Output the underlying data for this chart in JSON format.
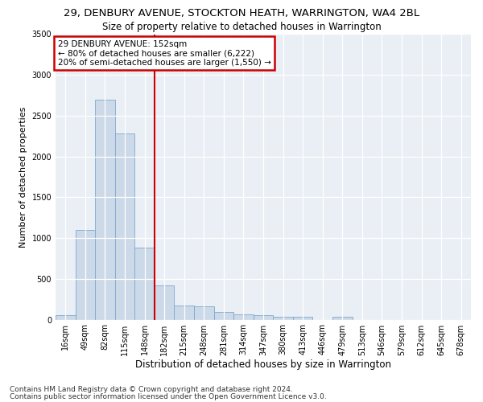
{
  "title": "29, DENBURY AVENUE, STOCKTON HEATH, WARRINGTON, WA4 2BL",
  "subtitle": "Size of property relative to detached houses in Warrington",
  "xlabel": "Distribution of detached houses by size in Warrington",
  "ylabel": "Number of detached properties",
  "categories": [
    "16sqm",
    "49sqm",
    "82sqm",
    "115sqm",
    "148sqm",
    "182sqm",
    "215sqm",
    "248sqm",
    "281sqm",
    "314sqm",
    "347sqm",
    "380sqm",
    "413sqm",
    "446sqm",
    "479sqm",
    "513sqm",
    "546sqm",
    "579sqm",
    "612sqm",
    "645sqm",
    "678sqm"
  ],
  "values": [
    50,
    1100,
    2700,
    2280,
    880,
    415,
    170,
    165,
    90,
    60,
    55,
    30,
    30,
    0,
    30,
    0,
    0,
    0,
    0,
    0,
    0
  ],
  "bar_color": "#ccd9e8",
  "bar_edgecolor": "#7fa8cc",
  "vline_color": "#cc0000",
  "vline_x": 4.5,
  "ylim": [
    0,
    3500
  ],
  "yticks": [
    0,
    500,
    1000,
    1500,
    2000,
    2500,
    3000,
    3500
  ],
  "annotation_text": "29 DENBURY AVENUE: 152sqm\n← 80% of detached houses are smaller (6,222)\n20% of semi-detached houses are larger (1,550) →",
  "annotation_box_edgecolor": "#cc0000",
  "annotation_box_facecolor": "#ffffff",
  "footer1": "Contains HM Land Registry data © Crown copyright and database right 2024.",
  "footer2": "Contains public sector information licensed under the Open Government Licence v3.0.",
  "plot_bg_color": "#eaeff5",
  "title_fontsize": 9.5,
  "subtitle_fontsize": 8.5,
  "tick_fontsize": 7,
  "ylabel_fontsize": 8,
  "xlabel_fontsize": 8.5,
  "annotation_fontsize": 7.5,
  "footer_fontsize": 6.5
}
